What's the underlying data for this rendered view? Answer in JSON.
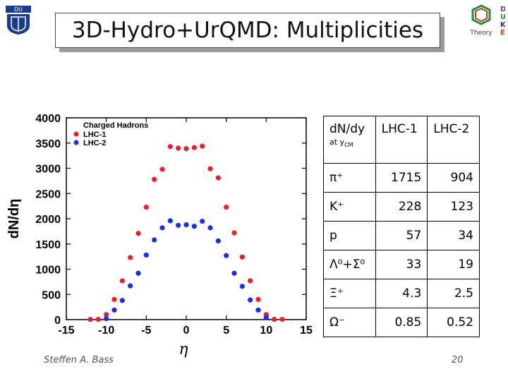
{
  "title": "3D-Hydro+UrQMD: Multiplicities",
  "colors": {
    "lhc1": "#e8202a",
    "lhc2": "#1a2fe0",
    "axis": "#000000"
  },
  "logos": {
    "left": "duke-university-shield-icon",
    "right": "duke-theory-logo-icon",
    "right_text": "Theory",
    "right_letters": [
      "D",
      "U",
      "K",
      "E"
    ]
  },
  "chart_data": {
    "type": "scatter",
    "title": "",
    "xlabel": "η",
    "ylabel": "dN/dη",
    "xlim": [
      -15,
      15
    ],
    "ylim": [
      0,
      4000
    ],
    "xticks": [
      -15,
      -10,
      -5,
      0,
      5,
      10,
      15
    ],
    "yticks": [
      0,
      500,
      1000,
      1500,
      2000,
      2500,
      3000,
      3500,
      4000
    ],
    "legend": {
      "placement": "top-left",
      "header": "Charged Hadrons",
      "entries": [
        "LHC-1",
        "LHC-2"
      ]
    },
    "series": [
      {
        "name": "LHC-1",
        "color": "#e8202a",
        "x": [
          -12,
          -11,
          -10,
          -9,
          -8,
          -7,
          -6,
          -5,
          -4,
          -3,
          -2,
          -1,
          0,
          1,
          2,
          3,
          4,
          5,
          6,
          7,
          8,
          9,
          10,
          11,
          12
        ],
        "y": [
          5,
          5,
          100,
          400,
          770,
          1230,
          1710,
          2230,
          2780,
          2980,
          3430,
          3400,
          3390,
          3410,
          3440,
          2990,
          2810,
          2230,
          1720,
          1240,
          770,
          400,
          100,
          5,
          5
        ]
      },
      {
        "name": "LHC-2",
        "color": "#1a2fe0",
        "x": [
          -10,
          -9,
          -8,
          -7,
          -6,
          -5,
          -4,
          -3,
          -2,
          -1,
          0,
          1,
          2,
          3,
          4,
          5,
          6,
          7,
          8,
          9,
          10
        ],
        "y": [
          20,
          190,
          380,
          670,
          920,
          1280,
          1580,
          1820,
          1960,
          1870,
          1880,
          1850,
          1950,
          1820,
          1560,
          1270,
          920,
          660,
          390,
          190,
          40
        ]
      }
    ]
  },
  "table": {
    "header": {
      "col1": "dN/dy",
      "col1_sub": "at y",
      "col1_sub_sub": "CM",
      "col2": "LHC-1",
      "col3": "LHC-2"
    },
    "rows": [
      {
        "particle": "π⁺",
        "lhc1": "1715",
        "lhc2": "904"
      },
      {
        "particle": "K⁺",
        "lhc1": "228",
        "lhc2": "123"
      },
      {
        "particle": "p",
        "lhc1": "57",
        "lhc2": "34"
      },
      {
        "particle": "Λ⁰+Σ⁰",
        "lhc1": "33",
        "lhc2": "19"
      },
      {
        "particle": "Ξ⁺",
        "lhc1": "4.3",
        "lhc2": "2.5"
      },
      {
        "particle": "Ω⁻",
        "lhc1": "0.85",
        "lhc2": "0.52"
      }
    ]
  },
  "footer": {
    "author": "Steffen A. Bass",
    "page": "20"
  }
}
